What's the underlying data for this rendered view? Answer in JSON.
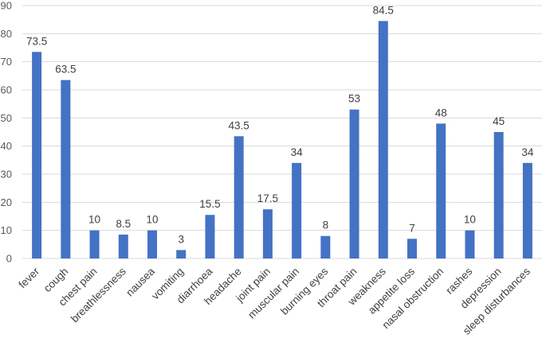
{
  "chart_data": {
    "type": "bar",
    "categories": [
      "fever",
      "cough",
      "chest pain",
      "breathlessness",
      "nausea",
      "vomiting",
      "diarrhoea",
      "headache",
      "joint pain",
      "muscular pain",
      "burning eyes",
      "throat pain",
      "weakness",
      "appetite loss",
      "nasal obstruction",
      "rashes",
      "depression",
      "sleep disturbances"
    ],
    "values": [
      73.5,
      63.5,
      10,
      8.5,
      10,
      3,
      15.5,
      43.5,
      17.5,
      34,
      8,
      53,
      84.5,
      7,
      48,
      10,
      45,
      34
    ],
    "value_labels": [
      "73.5",
      "63.5",
      "10",
      "8.5",
      "10",
      "3",
      "15.5",
      "43.5",
      "17.5",
      "34",
      "8",
      "53",
      "84.5",
      "7",
      "48",
      "10",
      "45",
      "34"
    ],
    "y_ticks": [
      "0",
      "10",
      "20",
      "30",
      "40",
      "50",
      "60",
      "70",
      "80",
      "90"
    ],
    "ylim": [
      0,
      90
    ],
    "grid": true,
    "legend": "none",
    "bar_color": "#4472c4"
  }
}
